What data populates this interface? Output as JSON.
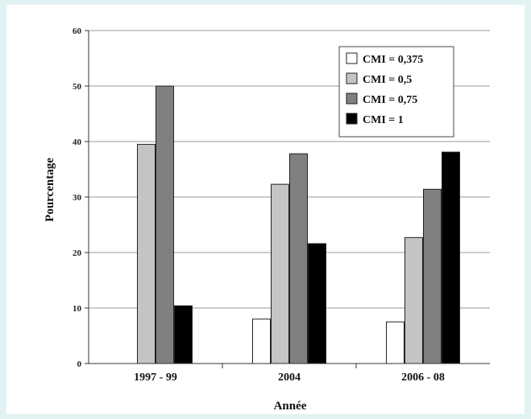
{
  "chart_data": {
    "type": "bar",
    "title": "",
    "xlabel": "Année",
    "ylabel": "Pourcentage",
    "ylim": [
      0,
      60
    ],
    "yticks": [
      0,
      10,
      20,
      30,
      40,
      50,
      60
    ],
    "grid": true,
    "legend_position": "top-right",
    "categories": [
      "1997 - 99",
      "2004",
      "2006 - 08"
    ],
    "series": [
      {
        "name": "CMI = 0,375",
        "color": "#ffffff",
        "values": [
          0,
          8,
          7.5
        ]
      },
      {
        "name": "CMI = 0,5",
        "color": "#c4c4c4",
        "values": [
          39.5,
          32.3,
          22.7
        ]
      },
      {
        "name": "CMI = 0,75",
        "color": "#808080",
        "values": [
          50,
          37.8,
          31.4
        ]
      },
      {
        "name": "CMI = 1",
        "color": "#000000",
        "values": [
          10.4,
          21.6,
          38.1
        ]
      }
    ]
  }
}
